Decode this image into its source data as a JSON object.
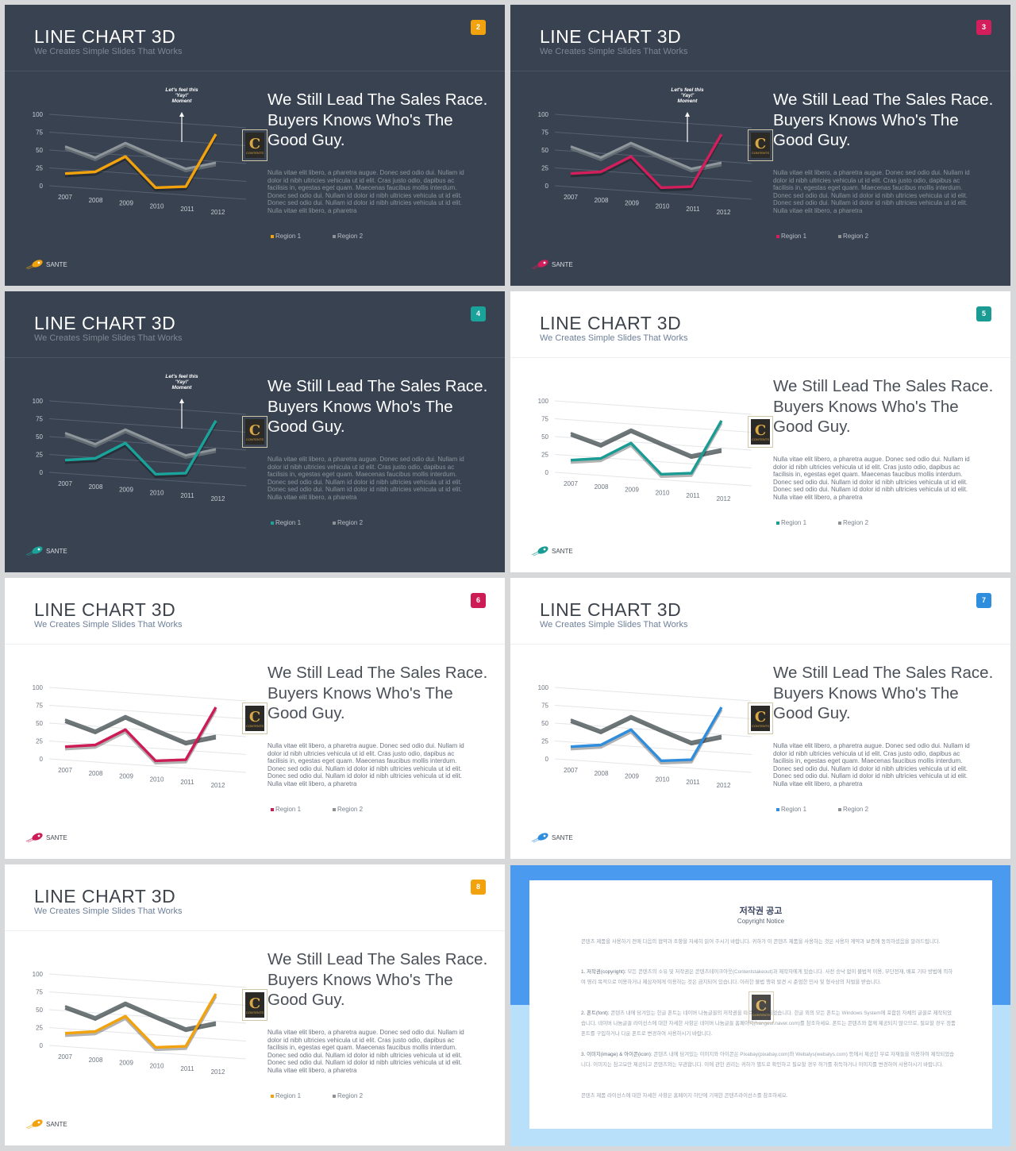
{
  "deck": {
    "title": "LINE CHART 3D",
    "subtitle": "We Creates Simple Slides That Works",
    "headline_lines": [
      "We Still Lead The Sales Race.",
      "Buyers Knows Who's The",
      "Good Guy."
    ],
    "body": "Nulla vitae elit libero, a pharetra augue. Donec sed odio dui. Nullam id dolor id nibh ultricies vehicula ut id elit. Cras justo odio, dapibus ac facilisis in, egestas eget quam. Maecenas faucibus mollis interdum. Donec sed odio dui. Nullam id dolor id nibh ultricies vehicula ut id elit. Donec sed odio dui. Nullam id dolor id nibh ultricies vehicula ut id elit. Nulla vitae elit libero, a pharetra",
    "callout": [
      "Let's feel this",
      "'Yay!'",
      "Moment"
    ],
    "logo": "SANTE",
    "seal_text": [
      "C",
      "CONTENTS"
    ],
    "legend": [
      "Region 1",
      "Region 2"
    ]
  },
  "slides": [
    {
      "number": "2",
      "theme": "dark",
      "accent": "#f2a20c",
      "callout": true
    },
    {
      "number": "3",
      "theme": "dark",
      "accent": "#d21e5a",
      "callout": true
    },
    {
      "number": "4",
      "theme": "dark",
      "accent": "#1aa39a",
      "callout": true
    },
    {
      "number": "5",
      "theme": "light",
      "accent": "#1a9c94",
      "callout": false
    },
    {
      "number": "6",
      "theme": "light",
      "accent": "#cc1b55",
      "callout": false
    },
    {
      "number": "7",
      "theme": "light",
      "accent": "#2e8ddc",
      "callout": false
    },
    {
      "number": "8",
      "theme": "light",
      "accent": "#f2a20c",
      "callout": false
    }
  ],
  "chart_data": {
    "type": "line",
    "categories": [
      "2007",
      "2008",
      "2009",
      "2010",
      "2011",
      "2012"
    ],
    "series": [
      {
        "name": "Region 1",
        "values": [
          17,
          23,
          48,
          8,
          13,
          90
        ]
      },
      {
        "name": "Region 2",
        "values": [
          55,
          43,
          67,
          52,
          38,
          50
        ]
      }
    ],
    "ylim": [
      0,
      100
    ],
    "yticks": [
      "0",
      "25",
      "50",
      "75",
      "100"
    ],
    "region2_color": "#8e9294",
    "grid": true
  },
  "copyright": {
    "title": "저작권 공고",
    "subtitle": "Copyright Notice",
    "intro": "콘텐츠 제품을 사용하기 전에 다음의 협약과 조항을 자세히 읽어 주시기 바랍니다. 귀하가 이 콘텐츠 제품을 사용하는 것은 사용자 계약과 보증에 동의하셨음을 알려드립니다.",
    "p1_head": "1. 저작권(copyright):",
    "p1": "모든 콘텐츠의 소유 및 저작권은 콘텐츠테이크아웃(Contentstakeout)과 제작자에게 있습니다. 사전 승낙 없이 불법적 이용, 무단전재, 배포 기타 방법에 의하여 영리 목적으로 이용하거나 제삼자에게 이용하는 것은 금지되어 있습니다. 이러한 불법 행위 발견 시 준엄한 민사 및 형사상의 처벌을 받습니다.",
    "p2_head": "2. 폰트(font):",
    "p2": "콘텐츠 내에 담겨있는 한글 폰트는 네이버 나눔글꼴의 저작권을 따르며 제작되었습니다. 한글 외의 모든 폰트는 Windows System에 포함된 자체의 글꼴로 제작되었습니다. 네이버 나눔글꼴 라이선스에 대한 자세한 사항은 네이버 나눔글꼴 홈페이지(hangeul.naver.com)를 참조하세요. 폰트는 콘텐츠와 함께 제공되지 않으므로, 필요할 경우 정품 폰트를 구입하거나 다운 폰트로 변경하여 사용하시기 바랍니다.",
    "p3_head": "3. 이미지(image) & 아이콘(icon):",
    "p3": "콘텐츠 내에 담겨있는 이미지와 아이콘은 Pixabay(pixabay.com)와 Webalys(webalys.com) 등에서 제공한 무료 자재들을 이용하여 제작되었습니다. 이미지는 참고요만 제공되고 콘텐츠와는 무관합니다. 이에 관한 권리는 귀하가 별도로 확인하고 필요할 경우 허가를 취득하거나 이미지를 변경하여 사용하시기 바랍니다.",
    "outro": "콘텐츠 제품 라이선스에 대한 자세한 사항은 홈페이지 하단에 기재한 콘텐츠라이선스를 참조하세요."
  }
}
